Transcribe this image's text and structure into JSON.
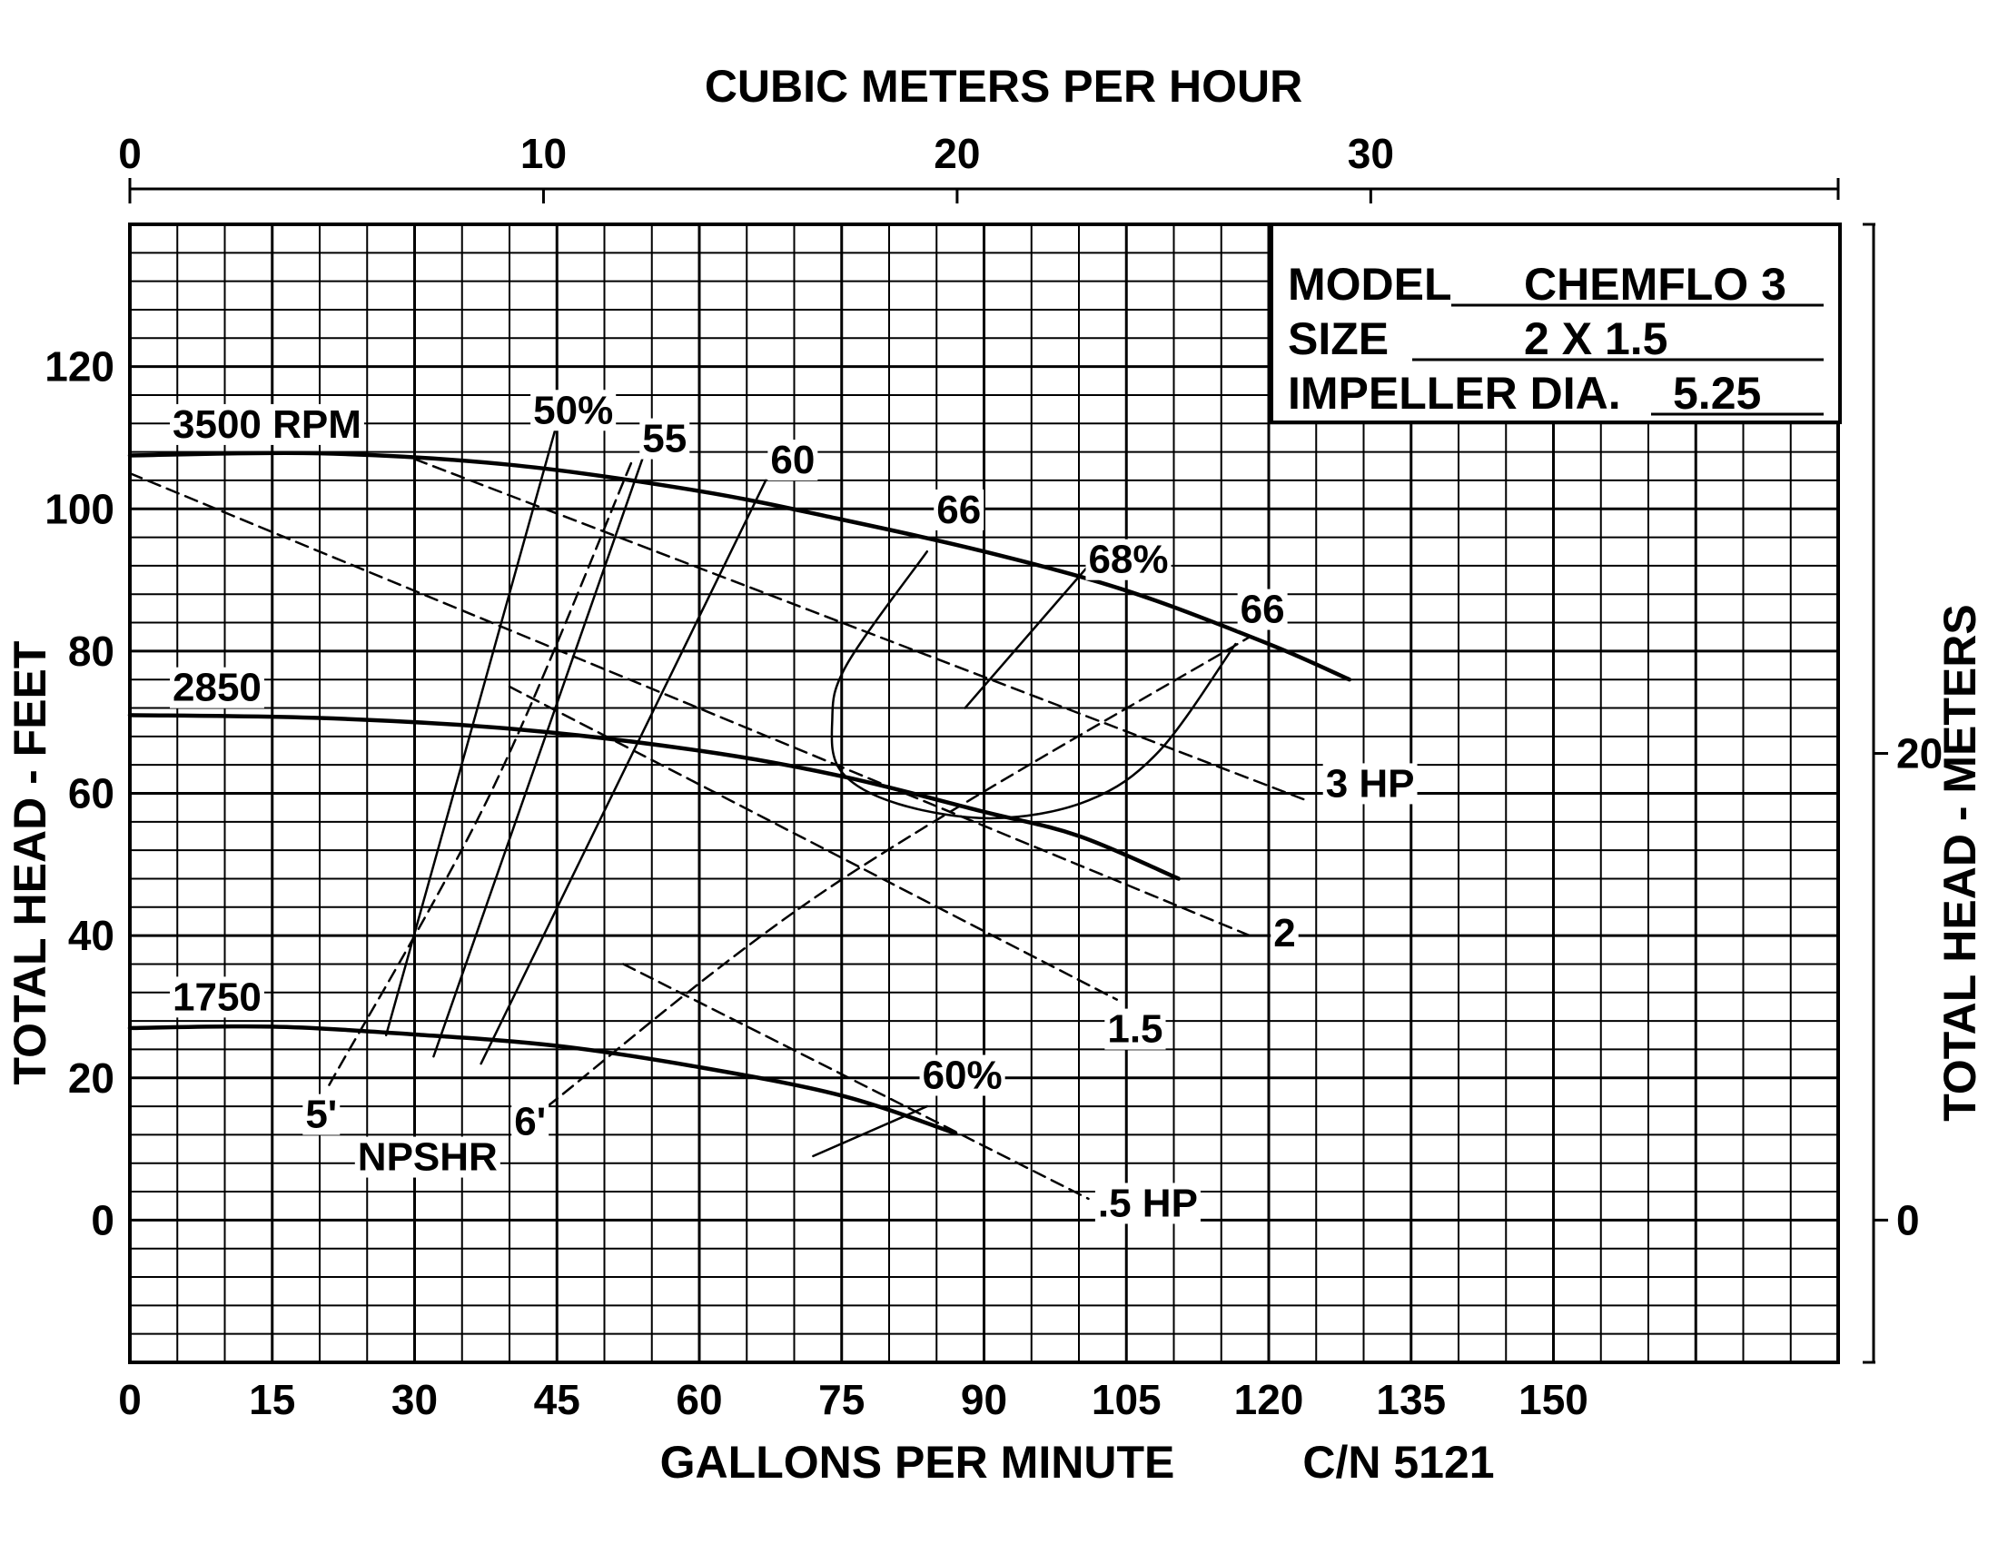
{
  "chart_data": {
    "type": "line",
    "title": "",
    "xlabel": "GALLONS PER MINUTE",
    "ylabel": "TOTAL HEAD - FEET",
    "x2label": "CUBIC METERS PER HOUR",
    "y2label": "TOTAL HEAD - METERS",
    "xlim": [
      0,
      180
    ],
    "ylim": [
      -20,
      140
    ],
    "grid": true,
    "x_ticks": [
      0,
      15,
      30,
      45,
      60,
      75,
      90,
      105,
      120,
      135,
      150
    ],
    "x_tick_labels": [
      "0",
      "15",
      "30",
      "45",
      "60",
      "75",
      "90",
      "105",
      "120",
      "135",
      "150"
    ],
    "y_ticks": [
      0,
      20,
      40,
      60,
      80,
      100,
      120
    ],
    "y_tick_labels": [
      "0",
      "20",
      "40",
      "60",
      "80",
      "100",
      "120"
    ],
    "x2_range": [
      0,
      41.3
    ],
    "x2_ticks": [
      0,
      10,
      20,
      30
    ],
    "x2_tick_labels": [
      "0",
      "10",
      "20",
      "30"
    ],
    "y2_ticks": [
      0,
      20
    ],
    "y2_tick_labels": [
      "0",
      "20"
    ],
    "series": [
      {
        "name": "3500 RPM",
        "kind": "head",
        "points": [
          [
            0,
            107.5
          ],
          [
            20,
            107.8
          ],
          [
            40,
            106.2
          ],
          [
            60,
            102.5
          ],
          [
            75,
            98.5
          ],
          [
            90,
            94
          ],
          [
            105,
            88.5
          ],
          [
            120,
            81
          ],
          [
            128.5,
            76
          ]
        ]
      },
      {
        "name": "2850",
        "kind": "head",
        "points": [
          [
            0,
            71
          ],
          [
            20,
            70.6
          ],
          [
            40,
            69.1
          ],
          [
            60,
            66
          ],
          [
            75,
            62.4
          ],
          [
            90,
            57.4
          ],
          [
            100,
            54
          ],
          [
            110.5,
            48
          ]
        ]
      },
      {
        "name": "1750",
        "kind": "head",
        "points": [
          [
            0,
            27
          ],
          [
            15,
            27.2
          ],
          [
            30,
            26.1
          ],
          [
            45,
            24.5
          ],
          [
            60,
            21.5
          ],
          [
            75,
            17.5
          ],
          [
            87,
            12.2
          ]
        ]
      },
      {
        "name": "3 HP",
        "kind": "power",
        "points": [
          [
            30,
            107
          ],
          [
            124,
            59
          ]
        ]
      },
      {
        "name": "2",
        "kind": "power",
        "points": [
          [
            0,
            105
          ],
          [
            118,
            40
          ]
        ]
      },
      {
        "name": "1.5",
        "kind": "power",
        "points": [
          [
            40,
            75
          ],
          [
            104,
            31
          ]
        ]
      },
      {
        "name": ".5 HP",
        "kind": "power",
        "points": [
          [
            52,
            36
          ],
          [
            101,
            3
          ]
        ]
      },
      {
        "name": "50%",
        "kind": "efficiency",
        "points": [
          [
            27,
            26
          ],
          [
            45,
            112
          ]
        ]
      },
      {
        "name": "55",
        "kind": "efficiency",
        "points": [
          [
            32,
            23
          ],
          [
            54,
            107
          ]
        ]
      },
      {
        "name": "60",
        "kind": "efficiency",
        "points": [
          [
            37,
            22
          ],
          [
            67,
            104
          ]
        ]
      },
      {
        "name": "66",
        "kind": "efficiency",
        "points": [
          [
            84,
            94
          ],
          [
            75.5,
            78
          ],
          [
            74,
            70
          ],
          [
            75,
            63
          ],
          [
            81,
            58.5
          ],
          [
            91,
            56.5
          ],
          [
            101,
            59
          ],
          [
            108.5,
            66
          ],
          [
            116.5,
            81
          ]
        ]
      },
      {
        "name": "68%",
        "kind": "efficiency",
        "points": [
          [
            88,
            72
          ],
          [
            101,
            92
          ]
        ]
      },
      {
        "name": "60%",
        "kind": "efficiency",
        "points": [
          [
            72,
            9
          ],
          [
            84,
            16
          ]
        ]
      },
      {
        "name": "5'",
        "kind": "npshr",
        "points": [
          [
            21,
            19
          ],
          [
            38,
            60
          ],
          [
            53,
            107
          ]
        ]
      },
      {
        "name": "6'",
        "kind": "npshr",
        "points": [
          [
            44,
            16
          ],
          [
            74,
            47
          ],
          [
            118,
            82
          ]
        ]
      }
    ],
    "labels": [
      {
        "text": "3500 RPM",
        "x": 4.5,
        "y": 110
      },
      {
        "text": "2850",
        "x": 4.5,
        "y": 73
      },
      {
        "text": "1750",
        "x": 4.5,
        "y": 29.5
      },
      {
        "text": "50%",
        "x": 42.5,
        "y": 112
      },
      {
        "text": "55",
        "x": 54,
        "y": 108
      },
      {
        "text": "60",
        "x": 67.5,
        "y": 105
      },
      {
        "text": "66",
        "x": 85,
        "y": 98
      },
      {
        "text": "68%",
        "x": 101,
        "y": 91
      },
      {
        "text": "66",
        "x": 117,
        "y": 84
      },
      {
        "text": "3 HP",
        "x": 126,
        "y": 59.5
      },
      {
        "text": "2",
        "x": 120.5,
        "y": 38.5
      },
      {
        "text": "1.5",
        "x": 103,
        "y": 25
      },
      {
        "text": "60%",
        "x": 83.5,
        "y": 18.5
      },
      {
        "text": ".5 HP",
        "x": 102,
        "y": 0.5
      },
      {
        "text": "5'",
        "x": 18.5,
        "y": 13
      },
      {
        "text": "6'",
        "x": 40.5,
        "y": 12
      },
      {
        "text": "NPSHR",
        "x": 24,
        "y": 7
      }
    ]
  },
  "info": {
    "model_label": "MODEL",
    "model_value": "CHEMFLO 3",
    "size_label": "SIZE",
    "size_value": "2 X 1.5",
    "impeller_label": "IMPELLER DIA.",
    "impeller_value": "5.25"
  },
  "footer": {
    "cn": "C/N 5121"
  }
}
